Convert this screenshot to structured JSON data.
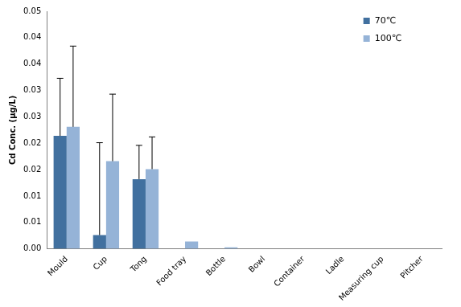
{
  "chart_data": {
    "type": "bar",
    "y_label": "Cd Conc. (μg/L)",
    "categories": [
      "Mould",
      "Cup",
      "Tong",
      "Food tray",
      "Bottle",
      "Bowl",
      "Container",
      "Ladle",
      "Measuring cup",
      "Pitcher"
    ],
    "series": [
      {
        "name": "70℃",
        "color": "#41709f",
        "values": [
          0.0214,
          0.0026,
          0.0132,
          0,
          0,
          0,
          0,
          0,
          0,
          0
        ],
        "error": [
          0.0109,
          0.0175,
          0.0064,
          null,
          null,
          null,
          null,
          null,
          null,
          null
        ]
      },
      {
        "name": "100℃",
        "color": "#95b3d7",
        "values": [
          0.0231,
          0.0166,
          0.0151,
          0.0014,
          0.0003,
          0,
          0,
          0,
          0,
          0
        ],
        "error": [
          0.0153,
          0.0127,
          0.0061,
          null,
          null,
          null,
          null,
          null,
          null,
          null
        ]
      }
    ],
    "ylim": [
      0,
      0.045
    ],
    "yticks": [
      {
        "value": 0,
        "label": "0.00"
      },
      {
        "value": 0.005,
        "label": "0.01"
      },
      {
        "value": 0.01,
        "label": "0.01"
      },
      {
        "value": 0.015,
        "label": "0.02"
      },
      {
        "value": 0.02,
        "label": "0.02"
      },
      {
        "value": 0.025,
        "label": "0.03"
      },
      {
        "value": 0.03,
        "label": "0.03"
      },
      {
        "value": 0.035,
        "label": "0.04"
      },
      {
        "value": 0.04,
        "label": "0.04"
      },
      {
        "value": 0.045,
        "label": "0.05"
      }
    ],
    "grid": false,
    "legend": "upper right"
  }
}
